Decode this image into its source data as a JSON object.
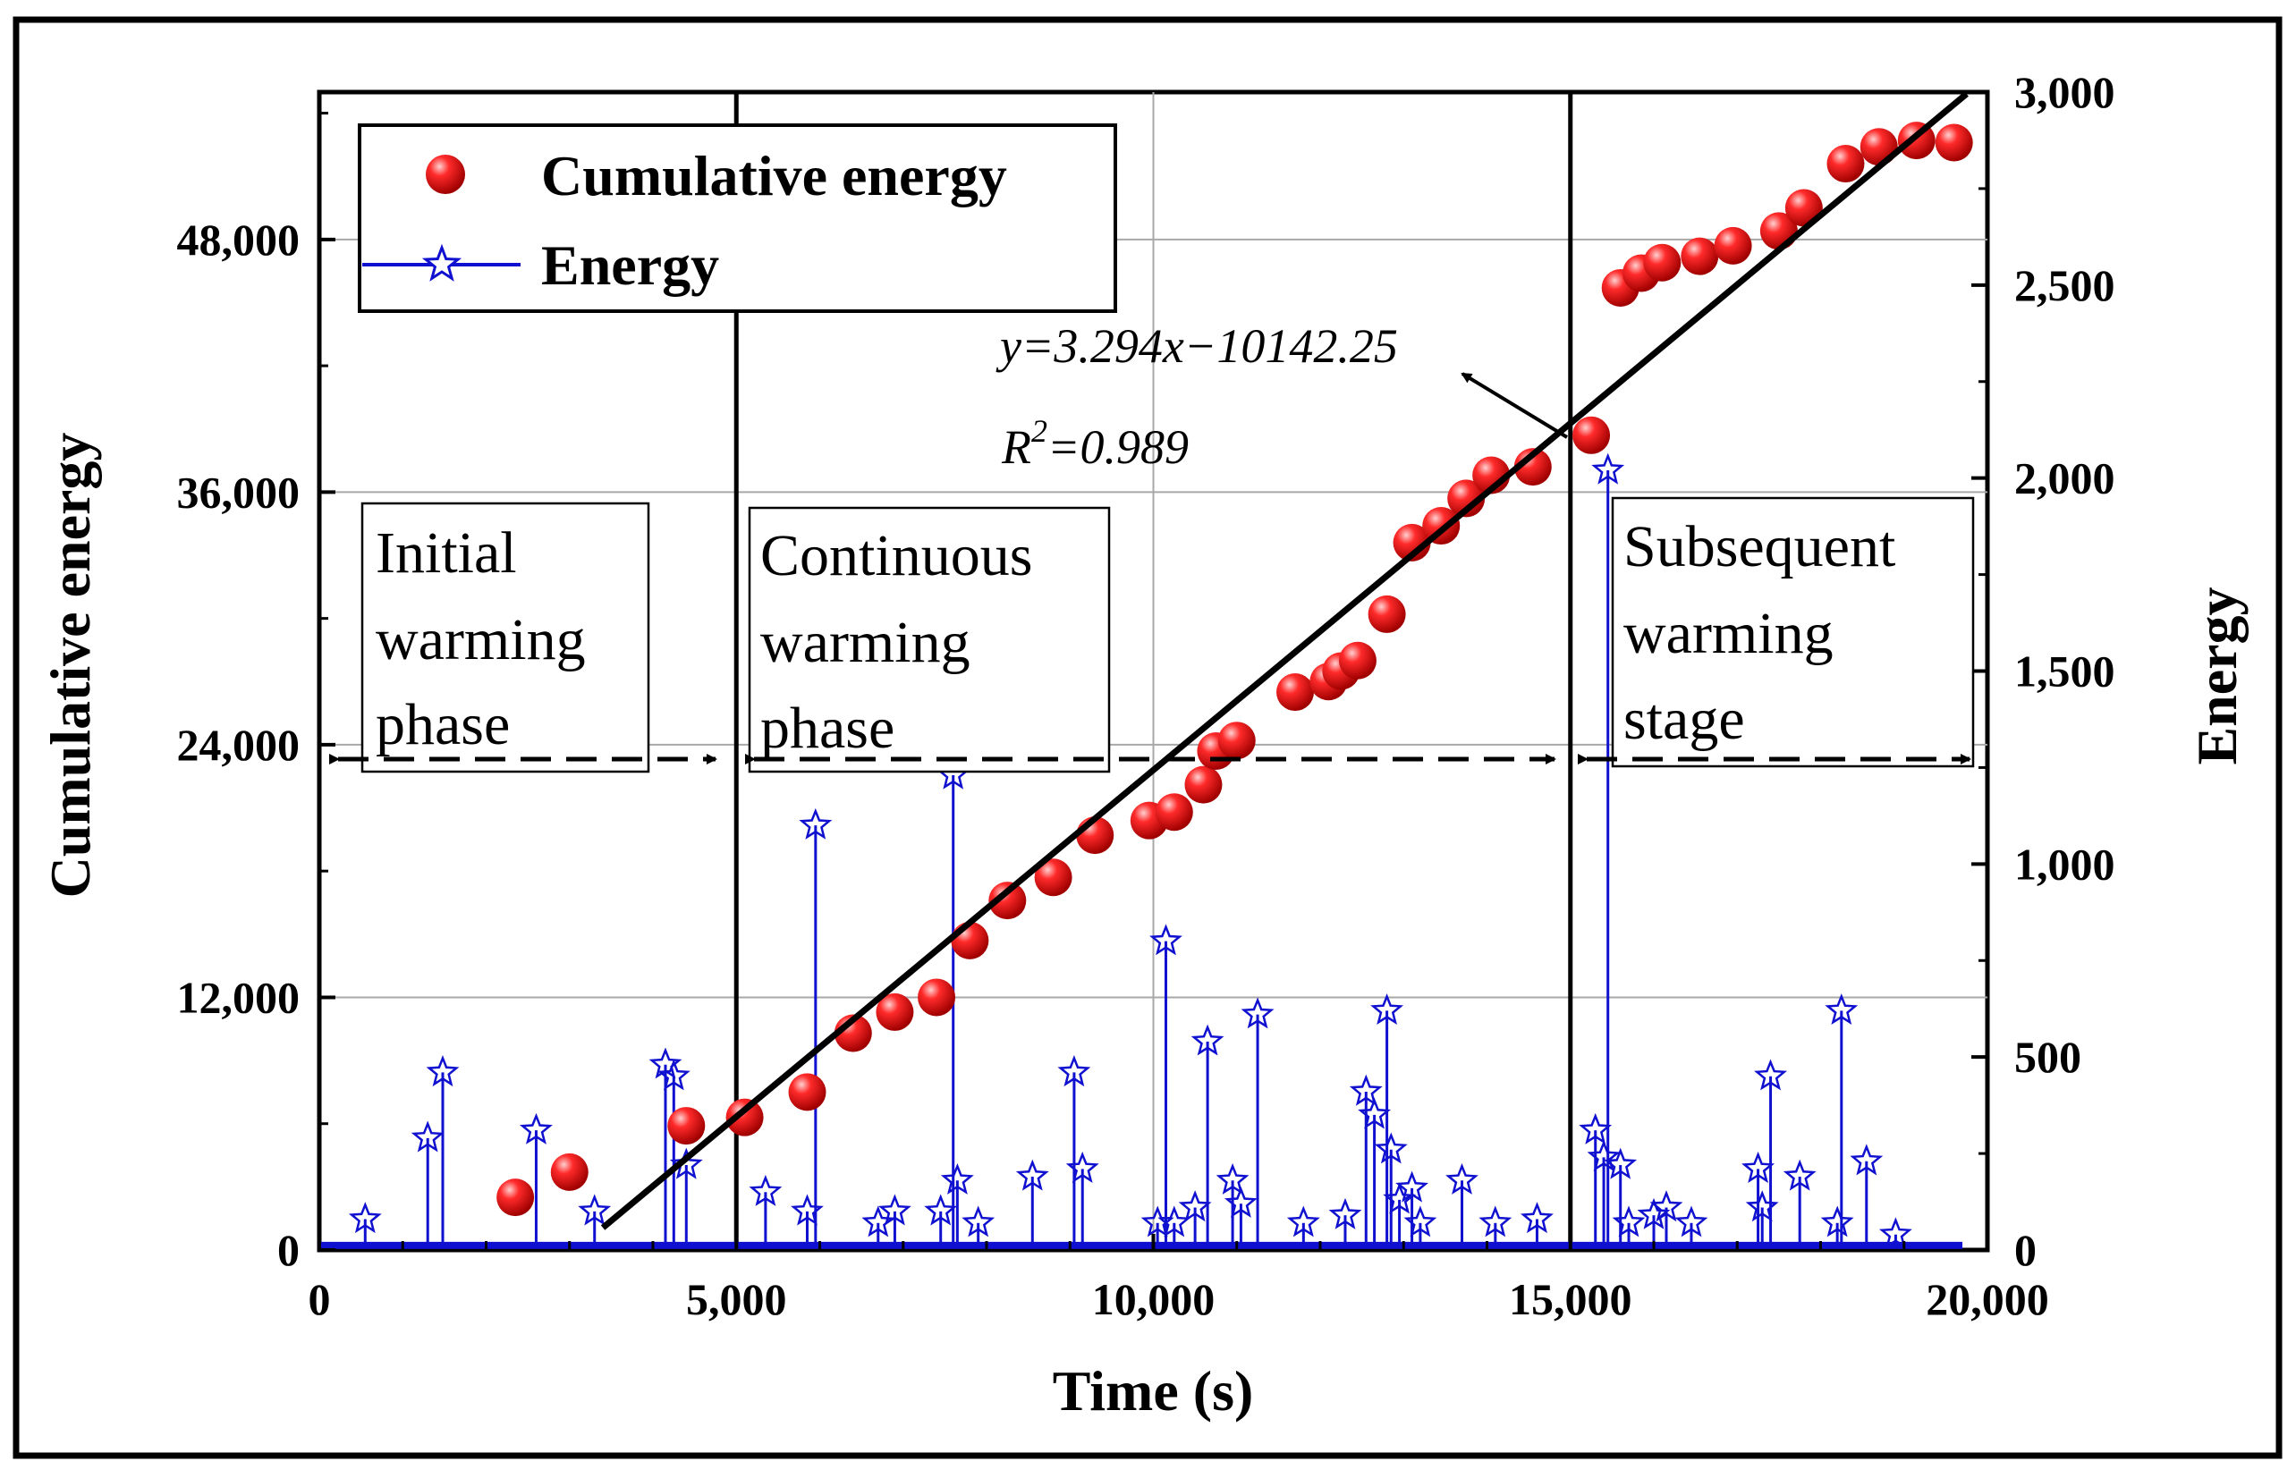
{
  "chart_data": {
    "type": "scatter",
    "title": "",
    "xlabel": "Time (s)",
    "ylabel_left": "Cumulative energy",
    "ylabel_right": "Energy",
    "xlim": [
      0,
      20000
    ],
    "ylim_left": [
      0,
      55000
    ],
    "ylim_right": [
      0,
      3000
    ],
    "x_ticks": [
      0,
      5000,
      10000,
      15000,
      20000
    ],
    "x_tick_labels": [
      "0",
      "5,000",
      "10,000",
      "15,000",
      "20,000"
    ],
    "y_left_ticks": [
      0,
      12000,
      24000,
      36000,
      48000
    ],
    "y_left_tick_labels": [
      "0",
      "12,000",
      "24,000",
      "36,000",
      "48,000"
    ],
    "y_right_ticks": [
      0,
      500,
      1000,
      1500,
      2000,
      2500,
      3000
    ],
    "y_right_tick_labels": [
      "0",
      "500",
      "1,000",
      "1,500",
      "2,000",
      "2,500",
      "3,000"
    ],
    "grid": true,
    "legend": {
      "position": "top-left",
      "entries": [
        {
          "label": "Cumulative energy",
          "marker": "red-sphere",
          "color": "#e00000"
        },
        {
          "label": "Energy",
          "marker": "blue-star-line",
          "color": "#1010d0"
        }
      ]
    },
    "series": [
      {
        "name": "Cumulative energy",
        "axis": "left",
        "color": "#e00000",
        "x": [
          2350,
          3000,
          4400,
          5100,
          5850,
          6400,
          6900,
          7400,
          7800,
          8250,
          8800,
          9300,
          9950,
          10250,
          10600,
          10750,
          11000,
          11700,
          12100,
          12250,
          12450,
          12800,
          13100,
          13450,
          13750,
          14050,
          14550,
          15250,
          15600,
          15850,
          16100,
          16550,
          16950,
          17500,
          17800,
          18300,
          18700,
          19150,
          19600
        ],
        "y": [
          2500,
          3700,
          5900,
          6300,
          7500,
          10300,
          11300,
          12000,
          14700,
          16600,
          17700,
          19700,
          20400,
          20800,
          22100,
          23700,
          24200,
          26500,
          27000,
          27500,
          28000,
          30200,
          33600,
          34400,
          35700,
          36800,
          37200,
          38700,
          45700,
          46400,
          46900,
          47200,
          47700,
          48400,
          49500,
          51600,
          52400,
          52700,
          52600
        ]
      },
      {
        "name": "Energy",
        "axis": "right",
        "color": "#1010d0",
        "x": [
          550,
          1300,
          1480,
          2600,
          3300,
          4150,
          4250,
          4400,
          5350,
          5850,
          5950,
          6700,
          6900,
          7450,
          7600,
          7650,
          7900,
          8550,
          9050,
          9150,
          10050,
          10150,
          10250,
          10500,
          10650,
          10950,
          11050,
          11250,
          11800,
          12300,
          12550,
          12650,
          12800,
          12850,
          12950,
          13100,
          13200,
          13700,
          14100,
          14600,
          15300,
          15400,
          15450,
          15600,
          15700,
          16000,
          16150,
          16450,
          17250,
          17300,
          17400,
          17750,
          18200,
          18250,
          18550,
          18900
        ],
        "y": [
          80,
          290,
          460,
          310,
          100,
          480,
          450,
          220,
          150,
          100,
          1100,
          70,
          100,
          100,
          1230,
          180,
          70,
          190,
          460,
          210,
          70,
          800,
          70,
          110,
          540,
          180,
          120,
          610,
          70,
          90,
          410,
          350,
          620,
          260,
          130,
          160,
          70,
          180,
          70,
          80,
          310,
          240,
          2020,
          220,
          70,
          90,
          110,
          70,
          210,
          110,
          450,
          190,
          70,
          620,
          230,
          40
        ]
      },
      {
        "name": "Linear fit",
        "axis": "left",
        "color": "#000000",
        "x": [
          3400,
          19750
        ],
        "y": [
          1058,
          54915
        ],
        "equation": "y=3.294x−10142.25",
        "r2": "R²=0.989"
      }
    ],
    "phase_boundaries_x": [
      5000,
      15000
    ],
    "phases": [
      {
        "lines": [
          "Initial",
          "warming",
          "phase"
        ]
      },
      {
        "lines": [
          "Continuous",
          "warming",
          "phase"
        ]
      },
      {
        "lines": [
          "Subsequent",
          "warming",
          "stage"
        ]
      }
    ],
    "annotations": {
      "equation": "y=3.294x−10142.25",
      "r_squared_prefix": "R",
      "r_squared_exp": "2",
      "r_squared_value": "=0.989"
    }
  },
  "colors": {
    "cumulative": "#e00000",
    "energy": "#1010d0",
    "fit": "#000000",
    "grid": "#a8a8a8"
  }
}
